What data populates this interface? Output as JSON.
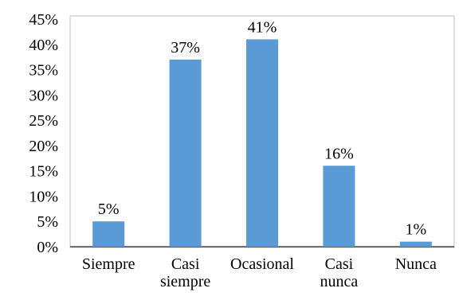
{
  "chart_data": {
    "type": "bar",
    "categories": [
      "Siempre",
      "Casi siempre",
      "Ocasional",
      "Casi nunca",
      "Nunca"
    ],
    "category_lines": [
      [
        "Siempre"
      ],
      [
        "Casi",
        "siempre"
      ],
      [
        "Ocasional"
      ],
      [
        "Casi",
        "nunca"
      ],
      [
        "Nunca"
      ]
    ],
    "values": [
      5,
      37,
      41,
      16,
      1
    ],
    "data_labels": [
      "5%",
      "37%",
      "41%",
      "16%",
      "1%"
    ],
    "y_ticks": [
      "0%",
      "5%",
      "10%",
      "15%",
      "20%",
      "25%",
      "30%",
      "35%",
      "40%",
      "45%"
    ],
    "ylim": [
      0,
      45
    ],
    "y_step": 5,
    "grid": false,
    "bar_color": "#5b9bd5",
    "title": "",
    "xlabel": "",
    "ylabel": ""
  }
}
